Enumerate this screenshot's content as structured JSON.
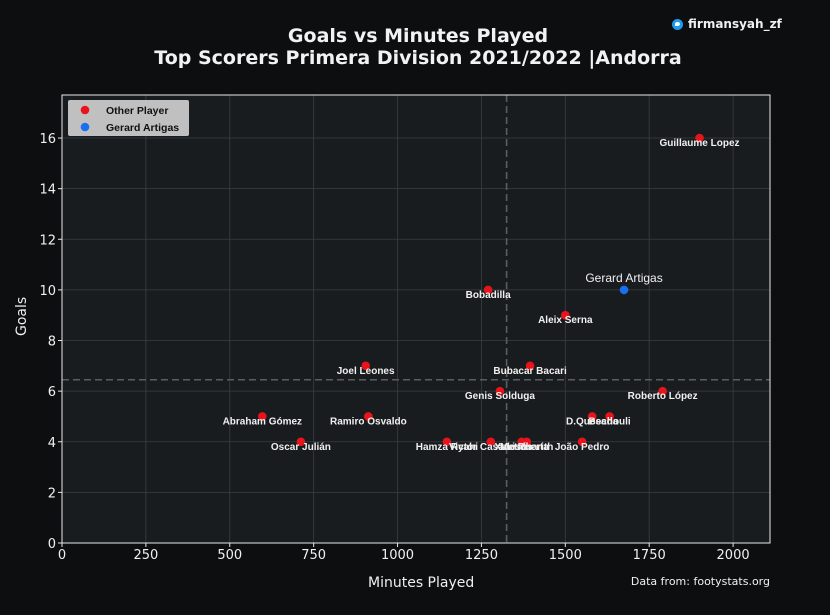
{
  "header": {
    "title_line1": "Goals vs Minutes Played",
    "title_line2": "Top Scorers Primera Division 2021/2022 |Andorra",
    "handle": "firmansyah_zf",
    "source": "Data from: footystats.org"
  },
  "colors": {
    "background": "#0c0e10",
    "plot_bg": "#191c1f",
    "other_player": "#e8141c",
    "highlight_player": "#1a6ff0",
    "grid": "#3a3e42",
    "mean_line": "#5a5e62"
  },
  "chart_data": {
    "type": "scatter",
    "xlabel": "Minutes Played",
    "ylabel": "Goals",
    "xlim": [
      0,
      2110
    ],
    "ylim": [
      0,
      17.7
    ],
    "xticks": [
      0,
      250,
      500,
      750,
      1000,
      1250,
      1500,
      1750,
      2000
    ],
    "yticks": [
      0,
      2,
      4,
      6,
      8,
      10,
      12,
      14,
      16
    ],
    "grid": true,
    "mean_x": 1325,
    "mean_y": 6.45,
    "legend_position": "top-left",
    "legend": [
      "Other Player",
      "Gerard Artigas"
    ],
    "points": [
      {
        "name": "Guillaume Lopez",
        "x": 1900,
        "y": 16,
        "group": "Other Player"
      },
      {
        "name": "Gerard Artigas",
        "x": 1675,
        "y": 10,
        "group": "Gerard Artigas"
      },
      {
        "name": "Bobadilla",
        "x": 1270,
        "y": 10,
        "group": "Other Player"
      },
      {
        "name": "Aleix Serna",
        "x": 1500,
        "y": 9,
        "group": "Other Player"
      },
      {
        "name": "Joel Leones",
        "x": 905,
        "y": 7,
        "group": "Other Player"
      },
      {
        "name": "Bubacar Bacari",
        "x": 1395,
        "y": 7,
        "group": "Other Player"
      },
      {
        "name": "Genis Solduga",
        "x": 1305,
        "y": 6,
        "group": "Other Player"
      },
      {
        "name": "Roberto López",
        "x": 1790,
        "y": 6,
        "group": "Other Player"
      },
      {
        "name": "Abraham Gómez",
        "x": 597,
        "y": 5,
        "group": "Other Player"
      },
      {
        "name": "Ramiro Osvaldo",
        "x": 913,
        "y": 5,
        "group": "Other Player"
      },
      {
        "name": "D.Quesada",
        "x": 1580,
        "y": 5,
        "group": "Other Player"
      },
      {
        "name": "Bechouli",
        "x": 1632,
        "y": 5,
        "group": "Other Player"
      },
      {
        "name": "Oscar Julián",
        "x": 712,
        "y": 4,
        "group": "Other Player"
      },
      {
        "name": "Hamza Ryahi",
        "x": 1147,
        "y": 4,
        "group": "Other Player"
      },
      {
        "name": "Victor Casadesús",
        "x": 1278,
        "y": 4,
        "group": "Other Player"
      },
      {
        "name": "Xavi Puerta",
        "x": 1370,
        "y": 4,
        "group": "Other Player"
      },
      {
        "name": "Metalharith",
        "x": 1385,
        "y": 4,
        "group": "Other Player"
      },
      {
        "name": "João Pedro",
        "x": 1550,
        "y": 4,
        "group": "Other Player"
      }
    ]
  }
}
